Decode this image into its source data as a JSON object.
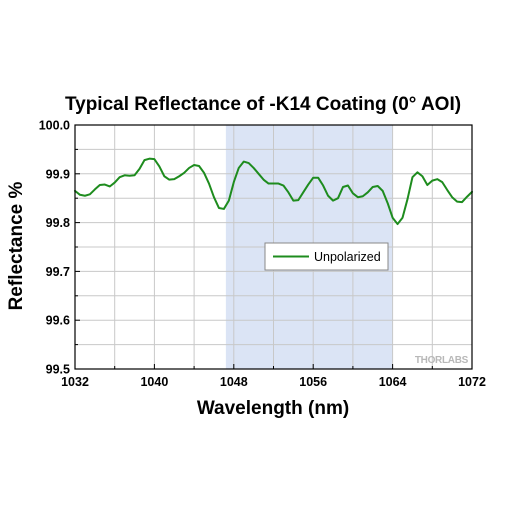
{
  "chart_data": {
    "type": "line",
    "title": "Typical Reflectance of -K14 Coating (0° AOI)",
    "xlabel": "Wavelength (nm)",
    "ylabel": "Reflectance %",
    "xlim": [
      1032,
      1072
    ],
    "ylim": [
      99.5,
      100.0
    ],
    "xticks": [
      1032,
      1040,
      1048,
      1056,
      1064,
      1072
    ],
    "xtick_labels": [
      "1032",
      "1040",
      "1048",
      "1056",
      "1064",
      "1072"
    ],
    "yticks": [
      99.5,
      99.6,
      99.7,
      99.8,
      99.9,
      100.0
    ],
    "ytick_labels": [
      "99.5",
      "99.6",
      "99.7",
      "99.8",
      "99.9",
      "100.0"
    ],
    "grid": true,
    "shaded_region": {
      "x_start": 1047.2,
      "x_end": 1064.0,
      "color": "#dbe4f5"
    },
    "legend": {
      "position": "center-right"
    },
    "watermark": "THORLABS",
    "series": [
      {
        "name": "Unpolarized",
        "color": "#1e8c1e",
        "x": [
          1032,
          1032.5,
          1033,
          1033.5,
          1034,
          1034.5,
          1035,
          1035.5,
          1036,
          1036.5,
          1037,
          1037.5,
          1038,
          1038.5,
          1039,
          1039.5,
          1040,
          1040.5,
          1041,
          1041.5,
          1042,
          1042.5,
          1043,
          1043.5,
          1044,
          1044.5,
          1045,
          1045.5,
          1046,
          1046.5,
          1047,
          1047.5,
          1048,
          1048.5,
          1049,
          1049.5,
          1050,
          1050.5,
          1051,
          1051.5,
          1052,
          1052.5,
          1053,
          1053.5,
          1054,
          1054.5,
          1055,
          1055.5,
          1056,
          1056.5,
          1057,
          1057.5,
          1058,
          1058.5,
          1059,
          1059.5,
          1060,
          1060.5,
          1061,
          1061.5,
          1062,
          1062.5,
          1063,
          1063.5,
          1064,
          1064.5,
          1065,
          1065.5,
          1066,
          1066.5,
          1067,
          1067.5,
          1068,
          1068.5,
          1069,
          1069.5,
          1070,
          1070.5,
          1071,
          1071.5,
          1072
        ],
        "y": [
          99.865,
          99.857,
          99.855,
          99.858,
          99.868,
          99.877,
          99.878,
          99.874,
          99.882,
          99.893,
          99.897,
          99.896,
          99.897,
          99.91,
          99.928,
          99.931,
          99.93,
          99.915,
          99.895,
          99.888,
          99.889,
          99.895,
          99.902,
          99.912,
          99.918,
          99.916,
          99.902,
          99.88,
          99.852,
          99.83,
          99.828,
          99.845,
          99.883,
          99.912,
          99.925,
          99.922,
          99.912,
          99.9,
          99.888,
          99.88,
          99.88,
          99.88,
          99.876,
          99.862,
          99.845,
          99.846,
          99.862,
          99.878,
          99.892,
          99.892,
          99.876,
          99.855,
          99.845,
          99.85,
          99.873,
          99.876,
          99.86,
          99.852,
          99.854,
          99.862,
          99.873,
          99.875,
          99.865,
          99.84,
          99.81,
          99.797,
          99.81,
          99.848,
          99.893,
          99.903,
          99.895,
          99.877,
          99.886,
          99.889,
          99.883,
          99.867,
          99.852,
          99.843,
          99.842,
          99.853,
          99.863
        ]
      }
    ]
  }
}
